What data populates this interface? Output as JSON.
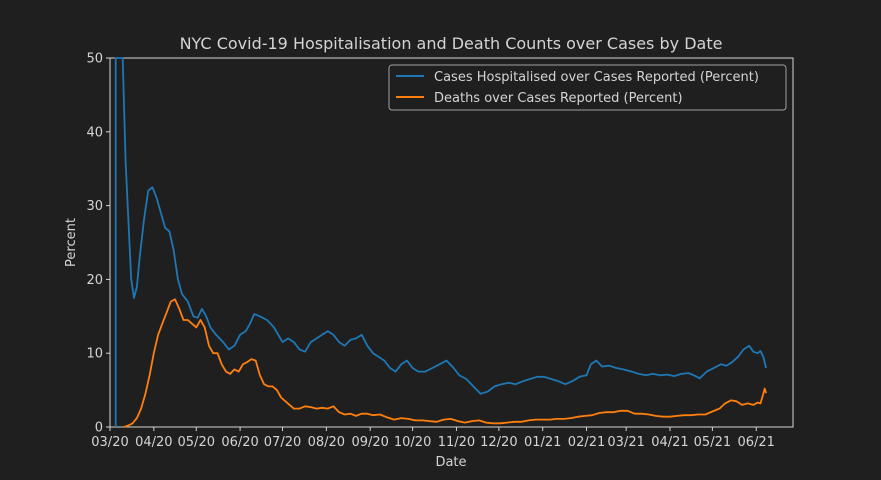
{
  "chart_data": {
    "type": "line",
    "title": "NYC Covid-19 Hospitalisation and Death Counts over Cases by Date",
    "xlabel": "Date",
    "ylabel": "Percent",
    "ylim": [
      0,
      50
    ],
    "xlim": [
      "2020-03-01",
      "2021-06-27"
    ],
    "yticks": [
      0,
      10,
      20,
      30,
      40,
      50
    ],
    "xticks": [
      {
        "date": "2020-03-01",
        "label": "03/20"
      },
      {
        "date": "2020-04-01",
        "label": "04/20"
      },
      {
        "date": "2020-05-01",
        "label": "05/20"
      },
      {
        "date": "2020-06-01",
        "label": "06/20"
      },
      {
        "date": "2020-07-01",
        "label": "07/20"
      },
      {
        "date": "2020-08-01",
        "label": "08/20"
      },
      {
        "date": "2020-09-01",
        "label": "09/20"
      },
      {
        "date": "2020-10-01",
        "label": "10/20"
      },
      {
        "date": "2020-11-01",
        "label": "11/20"
      },
      {
        "date": "2020-12-01",
        "label": "12/20"
      },
      {
        "date": "2021-01-01",
        "label": "01/21"
      },
      {
        "date": "2021-02-01",
        "label": "02/21"
      },
      {
        "date": "2021-03-01",
        "label": "03/21"
      },
      {
        "date": "2021-04-01",
        "label": "04/21"
      },
      {
        "date": "2021-05-01",
        "label": "05/21"
      },
      {
        "date": "2021-06-01",
        "label": "06/21"
      }
    ],
    "grid": false,
    "legend_position": "top-right",
    "series": [
      {
        "name": "Cases Hospitalised over Cases Reported (Percent)",
        "color": "#1f77b4",
        "points": [
          [
            "2020-03-05",
            0
          ],
          [
            "2020-03-05",
            50
          ],
          [
            "2020-03-10",
            50
          ],
          [
            "2020-03-12",
            36
          ],
          [
            "2020-03-14",
            28
          ],
          [
            "2020-03-16",
            20
          ],
          [
            "2020-03-18",
            17.5
          ],
          [
            "2020-03-20",
            19
          ],
          [
            "2020-03-22",
            23
          ],
          [
            "2020-03-25",
            28
          ],
          [
            "2020-03-28",
            32
          ],
          [
            "2020-03-31",
            32.5
          ],
          [
            "2020-04-03",
            31
          ],
          [
            "2020-04-06",
            29
          ],
          [
            "2020-04-09",
            27
          ],
          [
            "2020-04-12",
            26.5
          ],
          [
            "2020-04-15",
            24
          ],
          [
            "2020-04-18",
            20
          ],
          [
            "2020-04-21",
            18
          ],
          [
            "2020-04-25",
            17
          ],
          [
            "2020-04-29",
            15
          ],
          [
            "2020-05-02",
            14.8
          ],
          [
            "2020-05-05",
            16
          ],
          [
            "2020-05-08",
            15
          ],
          [
            "2020-05-11",
            13.5
          ],
          [
            "2020-05-15",
            12.5
          ],
          [
            "2020-05-20",
            11.5
          ],
          [
            "2020-05-24",
            10.5
          ],
          [
            "2020-05-28",
            11
          ],
          [
            "2020-06-01",
            12.5
          ],
          [
            "2020-06-05",
            13
          ],
          [
            "2020-06-08",
            14
          ],
          [
            "2020-06-11",
            15.3
          ],
          [
            "2020-06-15",
            15
          ],
          [
            "2020-06-20",
            14.5
          ],
          [
            "2020-06-25",
            13.5
          ],
          [
            "2020-06-28",
            12.5
          ],
          [
            "2020-07-01",
            11.5
          ],
          [
            "2020-07-05",
            12
          ],
          [
            "2020-07-09",
            11.5
          ],
          [
            "2020-07-13",
            10.5
          ],
          [
            "2020-07-17",
            10.2
          ],
          [
            "2020-07-21",
            11.5
          ],
          [
            "2020-07-25",
            12
          ],
          [
            "2020-07-29",
            12.5
          ],
          [
            "2020-08-02",
            13
          ],
          [
            "2020-08-06",
            12.5
          ],
          [
            "2020-08-10",
            11.5
          ],
          [
            "2020-08-14",
            11
          ],
          [
            "2020-08-18",
            11.8
          ],
          [
            "2020-08-22",
            12
          ],
          [
            "2020-08-26",
            12.5
          ],
          [
            "2020-08-30",
            11
          ],
          [
            "2020-09-03",
            10
          ],
          [
            "2020-09-07",
            9.5
          ],
          [
            "2020-09-11",
            9
          ],
          [
            "2020-09-15",
            8
          ],
          [
            "2020-09-19",
            7.5
          ],
          [
            "2020-09-23",
            8.5
          ],
          [
            "2020-09-27",
            9
          ],
          [
            "2020-10-01",
            8
          ],
          [
            "2020-10-05",
            7.5
          ],
          [
            "2020-10-10",
            7.5
          ],
          [
            "2020-10-15",
            8
          ],
          [
            "2020-10-20",
            8.5
          ],
          [
            "2020-10-25",
            9
          ],
          [
            "2020-10-30",
            8
          ],
          [
            "2020-11-03",
            7
          ],
          [
            "2020-11-08",
            6.5
          ],
          [
            "2020-11-13",
            5.5
          ],
          [
            "2020-11-18",
            4.5
          ],
          [
            "2020-11-23",
            4.8
          ],
          [
            "2020-11-28",
            5.5
          ],
          [
            "2020-12-03",
            5.8
          ],
          [
            "2020-12-08",
            6
          ],
          [
            "2020-12-13",
            5.8
          ],
          [
            "2020-12-18",
            6.2
          ],
          [
            "2020-12-23",
            6.5
          ],
          [
            "2020-12-28",
            6.8
          ],
          [
            "2021-01-02",
            6.8
          ],
          [
            "2021-01-07",
            6.5
          ],
          [
            "2021-01-12",
            6.2
          ],
          [
            "2021-01-17",
            5.8
          ],
          [
            "2021-01-22",
            6.2
          ],
          [
            "2021-01-27",
            6.8
          ],
          [
            "2021-02-01",
            7
          ],
          [
            "2021-02-04",
            8.5
          ],
          [
            "2021-02-08",
            9
          ],
          [
            "2021-02-12",
            8.2
          ],
          [
            "2021-02-17",
            8.3
          ],
          [
            "2021-02-22",
            8
          ],
          [
            "2021-02-27",
            7.8
          ],
          [
            "2021-03-05",
            7.5
          ],
          [
            "2021-03-10",
            7.2
          ],
          [
            "2021-03-15",
            7
          ],
          [
            "2021-03-20",
            7.2
          ],
          [
            "2021-03-25",
            7
          ],
          [
            "2021-03-30",
            7.1
          ],
          [
            "2021-04-04",
            6.9
          ],
          [
            "2021-04-09",
            7.2
          ],
          [
            "2021-04-14",
            7.3
          ],
          [
            "2021-04-18",
            7
          ],
          [
            "2021-04-22",
            6.6
          ],
          [
            "2021-04-27",
            7.5
          ],
          [
            "2021-05-02",
            8
          ],
          [
            "2021-05-07",
            8.5
          ],
          [
            "2021-05-11",
            8.3
          ],
          [
            "2021-05-15",
            8.8
          ],
          [
            "2021-05-19",
            9.5
          ],
          [
            "2021-05-23",
            10.5
          ],
          [
            "2021-05-27",
            11
          ],
          [
            "2021-05-30",
            10.2
          ],
          [
            "2021-06-02",
            10
          ],
          [
            "2021-06-04",
            10.3
          ],
          [
            "2021-06-06",
            9.5
          ],
          [
            "2021-06-08",
            8
          ]
        ]
      },
      {
        "name": "Deaths over Cases Reported (Percent)",
        "color": "#ff7f0e",
        "points": [
          [
            "2020-03-11",
            0
          ],
          [
            "2020-03-14",
            0.2
          ],
          [
            "2020-03-17",
            0.5
          ],
          [
            "2020-03-20",
            1.2
          ],
          [
            "2020-03-23",
            2.5
          ],
          [
            "2020-03-26",
            4.5
          ],
          [
            "2020-03-29",
            7
          ],
          [
            "2020-04-01",
            10
          ],
          [
            "2020-04-04",
            12.5
          ],
          [
            "2020-04-07",
            14
          ],
          [
            "2020-04-10",
            15.5
          ],
          [
            "2020-04-13",
            17
          ],
          [
            "2020-04-16",
            17.3
          ],
          [
            "2020-04-19",
            16
          ],
          [
            "2020-04-22",
            14.5
          ],
          [
            "2020-04-25",
            14.5
          ],
          [
            "2020-04-28",
            14
          ],
          [
            "2020-05-01",
            13.5
          ],
          [
            "2020-05-04",
            14.5
          ],
          [
            "2020-05-07",
            13.5
          ],
          [
            "2020-05-10",
            11
          ],
          [
            "2020-05-13",
            10
          ],
          [
            "2020-05-16",
            10
          ],
          [
            "2020-05-19",
            8.5
          ],
          [
            "2020-05-22",
            7.5
          ],
          [
            "2020-05-25",
            7.2
          ],
          [
            "2020-05-28",
            7.8
          ],
          [
            "2020-05-31",
            7.5
          ],
          [
            "2020-06-03",
            8.5
          ],
          [
            "2020-06-06",
            8.8
          ],
          [
            "2020-06-09",
            9.2
          ],
          [
            "2020-06-12",
            9
          ],
          [
            "2020-06-15",
            7
          ],
          [
            "2020-06-18",
            5.8
          ],
          [
            "2020-06-21",
            5.5
          ],
          [
            "2020-06-24",
            5.5
          ],
          [
            "2020-06-27",
            5
          ],
          [
            "2020-06-30",
            4
          ],
          [
            "2020-07-03",
            3.5
          ],
          [
            "2020-07-06",
            3
          ],
          [
            "2020-07-09",
            2.5
          ],
          [
            "2020-07-13",
            2.5
          ],
          [
            "2020-07-17",
            2.8
          ],
          [
            "2020-07-21",
            2.7
          ],
          [
            "2020-07-25",
            2.5
          ],
          [
            "2020-07-29",
            2.6
          ],
          [
            "2020-08-02",
            2.5
          ],
          [
            "2020-08-06",
            2.8
          ],
          [
            "2020-08-10",
            2
          ],
          [
            "2020-08-14",
            1.7
          ],
          [
            "2020-08-18",
            1.8
          ],
          [
            "2020-08-22",
            1.5
          ],
          [
            "2020-08-26",
            1.8
          ],
          [
            "2020-08-30",
            1.8
          ],
          [
            "2020-09-03",
            1.6
          ],
          [
            "2020-09-08",
            1.7
          ],
          [
            "2020-09-13",
            1.3
          ],
          [
            "2020-09-18",
            1.0
          ],
          [
            "2020-09-23",
            1.2
          ],
          [
            "2020-09-28",
            1.1
          ],
          [
            "2020-10-03",
            0.9
          ],
          [
            "2020-10-08",
            0.9
          ],
          [
            "2020-10-13",
            0.8
          ],
          [
            "2020-10-18",
            0.7
          ],
          [
            "2020-10-23",
            1.0
          ],
          [
            "2020-10-28",
            1.1
          ],
          [
            "2020-11-02",
            0.8
          ],
          [
            "2020-11-07",
            0.6
          ],
          [
            "2020-11-12",
            0.8
          ],
          [
            "2020-11-17",
            0.9
          ],
          [
            "2020-11-22",
            0.6
          ],
          [
            "2020-11-27",
            0.5
          ],
          [
            "2020-12-02",
            0.5
          ],
          [
            "2020-12-07",
            0.6
          ],
          [
            "2020-12-12",
            0.7
          ],
          [
            "2020-12-17",
            0.7
          ],
          [
            "2020-12-22",
            0.9
          ],
          [
            "2020-12-27",
            1.0
          ],
          [
            "2021-01-01",
            1.0
          ],
          [
            "2021-01-06",
            1.0
          ],
          [
            "2021-01-11",
            1.1
          ],
          [
            "2021-01-16",
            1.1
          ],
          [
            "2021-01-21",
            1.2
          ],
          [
            "2021-01-26",
            1.4
          ],
          [
            "2021-01-31",
            1.5
          ],
          [
            "2021-02-05",
            1.6
          ],
          [
            "2021-02-10",
            1.9
          ],
          [
            "2021-02-15",
            2.0
          ],
          [
            "2021-02-20",
            2.0
          ],
          [
            "2021-02-25",
            2.2
          ],
          [
            "2021-03-02",
            2.2
          ],
          [
            "2021-03-07",
            1.8
          ],
          [
            "2021-03-12",
            1.8
          ],
          [
            "2021-03-17",
            1.7
          ],
          [
            "2021-03-22",
            1.5
          ],
          [
            "2021-03-27",
            1.4
          ],
          [
            "2021-04-01",
            1.4
          ],
          [
            "2021-04-06",
            1.5
          ],
          [
            "2021-04-11",
            1.6
          ],
          [
            "2021-04-16",
            1.6
          ],
          [
            "2021-04-21",
            1.7
          ],
          [
            "2021-04-26",
            1.7
          ],
          [
            "2021-05-01",
            2.1
          ],
          [
            "2021-05-06",
            2.5
          ],
          [
            "2021-05-10",
            3.2
          ],
          [
            "2021-05-14",
            3.6
          ],
          [
            "2021-05-18",
            3.5
          ],
          [
            "2021-05-22",
            3.0
          ],
          [
            "2021-05-26",
            3.2
          ],
          [
            "2021-05-30",
            3.0
          ],
          [
            "2021-06-02",
            3.3
          ],
          [
            "2021-06-04",
            3.2
          ],
          [
            "2021-06-06",
            4.5
          ],
          [
            "2021-06-07",
            5.2
          ],
          [
            "2021-06-08",
            4.6
          ]
        ]
      }
    ]
  }
}
